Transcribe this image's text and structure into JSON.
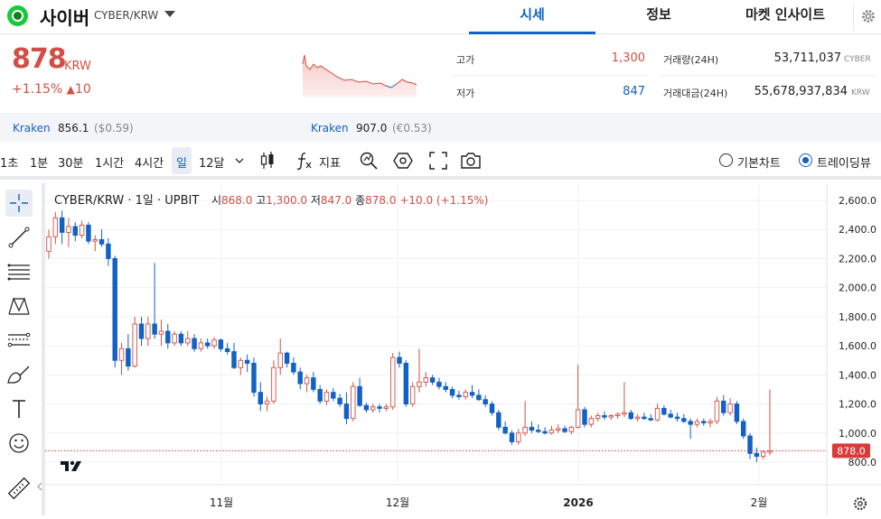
{
  "header": {
    "coin_name": "사이버",
    "coin_pair": "CYBER/KRW",
    "tabs": [
      {
        "label": "시세",
        "active": true
      },
      {
        "label": "정보",
        "active": false
      },
      {
        "label": "마켓 인사이트",
        "active": false
      }
    ]
  },
  "price": {
    "current": "878",
    "unit": "KRW",
    "change_pct": "+1.15%",
    "change_arrow": "▲",
    "change_amount": "10"
  },
  "stats": {
    "high_label": "고가",
    "high": "1,300",
    "low_label": "저가",
    "low": "847",
    "volume_label": "거래량(24H)",
    "volume": "53,711,037",
    "volume_unit": "CYBER",
    "amount_label": "거래대금(24H)",
    "amount": "55,678,937,834",
    "amount_unit": "KRW"
  },
  "kraken": [
    {
      "name": "Kraken",
      "value": "856.1",
      "sub": "($0.59)"
    },
    {
      "name": "Kraken",
      "value": "907.0",
      "sub": "(€0.53)"
    }
  ],
  "toolbar": {
    "intervals": [
      "1초",
      "1분",
      "30분",
      "1시간",
      "4시간",
      "일",
      "12달"
    ],
    "selected_interval": "일",
    "indicator_label": "지표",
    "chart_modes": [
      {
        "label": "기본차트",
        "selected": false
      },
      {
        "label": "트레이딩뷰",
        "selected": true
      }
    ]
  },
  "legend": {
    "symbol": "CYBER/KRW · 1일 · UPBIT",
    "open_label": "시",
    "open": "868.0",
    "high_label": "고",
    "high": "1,300.0",
    "low_label": "저",
    "low": "847.0",
    "close_label": "종",
    "close": "878.0",
    "change": "+10.0 (+1.15%)"
  },
  "colors": {
    "up": "#d24f45",
    "down": "#1261c4",
    "accent": "#1261c4",
    "last_price_tag": "#d93a3a"
  },
  "icons": [
    "crosshair-icon",
    "trendline-icon",
    "fib-lines-icon",
    "pattern-icon",
    "forecast-icon",
    "brush-icon",
    "text-icon",
    "emoji-icon",
    "ruler-icon",
    "candle-type-icon",
    "function-icon",
    "alert-icon",
    "hexagon-settings-icon",
    "fullscreen-icon",
    "camera-icon",
    "gear-icon"
  ],
  "chart_data": {
    "type": "candlestick",
    "y_ticks": [
      800,
      1000,
      1200,
      1400,
      1600,
      1800,
      2000,
      2200,
      2400,
      2600
    ],
    "y_tick_labels": [
      "800.0",
      "1,000.0",
      "1,200.0",
      "1,400.0",
      "1,600.0",
      "1,800.0",
      "2,000.0",
      "2,200.0",
      "2,400.0",
      "2,600.0"
    ],
    "x_labels": [
      "11월",
      "12월",
      "2026",
      "2월"
    ],
    "last_price": 878.0,
    "last_price_label": "878.0",
    "candles": [
      [
        2250,
        2400,
        2200,
        2350
      ],
      [
        2350,
        2520,
        2300,
        2480
      ],
      [
        2480,
        2530,
        2300,
        2380
      ],
      [
        2380,
        2480,
        2280,
        2420
      ],
      [
        2420,
        2450,
        2320,
        2360
      ],
      [
        2360,
        2460,
        2340,
        2430
      ],
      [
        2430,
        2450,
        2300,
        2320
      ],
      [
        2320,
        2360,
        2250,
        2330
      ],
      [
        2330,
        2400,
        2280,
        2300
      ],
      [
        2300,
        2340,
        2150,
        2200
      ],
      [
        2200,
        2220,
        1450,
        1500
      ],
      [
        1500,
        1620,
        1400,
        1580
      ],
      [
        1580,
        1680,
        1430,
        1460
      ],
      [
        1460,
        1800,
        1450,
        1750
      ],
      [
        1750,
        1800,
        1600,
        1650
      ],
      [
        1650,
        1800,
        1600,
        1750
      ],
      [
        1750,
        2170,
        1650,
        1680
      ],
      [
        1680,
        1780,
        1600,
        1700
      ],
      [
        1700,
        1750,
        1580,
        1620
      ],
      [
        1620,
        1700,
        1600,
        1680
      ],
      [
        1680,
        1700,
        1600,
        1620
      ],
      [
        1620,
        1700,
        1600,
        1650
      ],
      [
        1650,
        1680,
        1560,
        1580
      ],
      [
        1580,
        1650,
        1560,
        1620
      ],
      [
        1620,
        1650,
        1580,
        1600
      ],
      [
        1600,
        1660,
        1580,
        1640
      ],
      [
        1640,
        1650,
        1560,
        1580
      ],
      [
        1580,
        1620,
        1540,
        1560
      ],
      [
        1560,
        1620,
        1440,
        1450
      ],
      [
        1450,
        1520,
        1400,
        1500
      ],
      [
        1500,
        1540,
        1420,
        1480
      ],
      [
        1480,
        1520,
        1250,
        1280
      ],
      [
        1280,
        1350,
        1150,
        1200
      ],
      [
        1200,
        1250,
        1150,
        1220
      ],
      [
        1220,
        1500,
        1200,
        1450
      ],
      [
        1450,
        1650,
        1400,
        1550
      ],
      [
        1550,
        1560,
        1450,
        1480
      ],
      [
        1480,
        1520,
        1400,
        1420
      ],
      [
        1420,
        1450,
        1300,
        1340
      ],
      [
        1340,
        1400,
        1280,
        1380
      ],
      [
        1380,
        1420,
        1280,
        1300
      ],
      [
        1300,
        1330,
        1200,
        1220
      ],
      [
        1220,
        1300,
        1190,
        1280
      ],
      [
        1280,
        1310,
        1220,
        1240
      ],
      [
        1240,
        1270,
        1180,
        1200
      ],
      [
        1200,
        1280,
        1060,
        1100
      ],
      [
        1100,
        1350,
        1080,
        1320
      ],
      [
        1320,
        1380,
        1180,
        1190
      ],
      [
        1190,
        1210,
        1140,
        1160
      ],
      [
        1160,
        1200,
        1140,
        1180
      ],
      [
        1180,
        1200,
        1140,
        1170
      ],
      [
        1170,
        1200,
        1150,
        1180
      ],
      [
        1180,
        1550,
        1160,
        1520
      ],
      [
        1520,
        1560,
        1450,
        1480
      ],
      [
        1480,
        1500,
        1180,
        1200
      ],
      [
        1200,
        1350,
        1180,
        1320
      ],
      [
        1320,
        1580,
        1280,
        1350
      ],
      [
        1350,
        1420,
        1320,
        1380
      ],
      [
        1380,
        1400,
        1330,
        1350
      ],
      [
        1350,
        1380,
        1300,
        1320
      ],
      [
        1320,
        1350,
        1280,
        1300
      ],
      [
        1300,
        1320,
        1240,
        1260
      ],
      [
        1260,
        1290,
        1230,
        1250
      ],
      [
        1250,
        1300,
        1230,
        1280
      ],
      [
        1280,
        1330,
        1240,
        1260
      ],
      [
        1260,
        1300,
        1220,
        1230
      ],
      [
        1230,
        1260,
        1180,
        1200
      ],
      [
        1200,
        1220,
        1120,
        1140
      ],
      [
        1140,
        1160,
        1020,
        1040
      ],
      [
        1040,
        1080,
        990,
        1000
      ],
      [
        1000,
        1020,
        920,
        940
      ],
      [
        940,
        1030,
        920,
        1000
      ],
      [
        1000,
        1220,
        980,
        1040
      ],
      [
        1040,
        1080,
        1000,
        1020
      ],
      [
        1020,
        1060,
        1000,
        1010
      ],
      [
        1010,
        1040,
        990,
        1000
      ],
      [
        1000,
        1050,
        990,
        1020
      ],
      [
        1020,
        1060,
        1000,
        1030
      ],
      [
        1030,
        1050,
        1000,
        1010
      ],
      [
        1010,
        1050,
        990,
        1040
      ],
      [
        1040,
        1470,
        1030,
        1160
      ],
      [
        1160,
        1180,
        1040,
        1060
      ],
      [
        1060,
        1120,
        1040,
        1100
      ],
      [
        1100,
        1140,
        1080,
        1120
      ],
      [
        1120,
        1150,
        1090,
        1110
      ],
      [
        1110,
        1130,
        1090,
        1120
      ],
      [
        1120,
        1140,
        1100,
        1130
      ],
      [
        1130,
        1350,
        1110,
        1140
      ],
      [
        1140,
        1160,
        1090,
        1100
      ],
      [
        1100,
        1130,
        1080,
        1110
      ],
      [
        1110,
        1140,
        1090,
        1100
      ],
      [
        1100,
        1130,
        1080,
        1090
      ],
      [
        1090,
        1200,
        1080,
        1170
      ],
      [
        1170,
        1190,
        1120,
        1130
      ],
      [
        1130,
        1160,
        1100,
        1110
      ],
      [
        1110,
        1140,
        1080,
        1100
      ],
      [
        1100,
        1130,
        1070,
        1080
      ],
      [
        1080,
        1100,
        960,
        1060
      ],
      [
        1060,
        1100,
        1040,
        1080
      ],
      [
        1080,
        1100,
        1050,
        1070
      ],
      [
        1070,
        1100,
        1040,
        1080
      ],
      [
        1080,
        1250,
        1060,
        1220
      ],
      [
        1220,
        1260,
        1120,
        1140
      ],
      [
        1140,
        1240,
        1120,
        1200
      ],
      [
        1200,
        1220,
        1060,
        1080
      ],
      [
        1080,
        1100,
        960,
        980
      ],
      [
        980,
        1000,
        820,
        860
      ],
      [
        860,
        900,
        800,
        840
      ],
      [
        840,
        880,
        820,
        870
      ],
      [
        868,
        1300,
        847,
        878
      ]
    ]
  }
}
